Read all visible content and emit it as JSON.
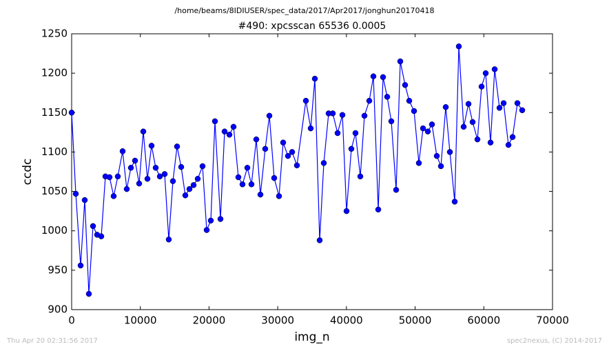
{
  "chart_data": {
    "type": "line",
    "suptitle": "/home/beams/8IDIUSER/spec_data/2017/Apr2017/jonghun20170418",
    "title": "#490: xpcsscan 65536 0.0005",
    "x_label": "img_n",
    "y_label": "ccdc",
    "footer_left": "Thu Apr 20 02:31:56 2017",
    "footer_right": "spec2nexus, (C) 2014-2017",
    "color": "#0000ff",
    "xlim": [
      0,
      70000
    ],
    "xticks": [
      0,
      10000,
      20000,
      30000,
      40000,
      50000,
      60000,
      70000
    ],
    "ylim": [
      900,
      1250
    ],
    "yticks": [
      900,
      950,
      1000,
      1050,
      1100,
      1150,
      1200,
      1250
    ],
    "x": [
      0,
      602,
      1304,
      1905,
      2507,
      3109,
      3710,
      4312,
      4914,
      5516,
      6117,
      6719,
      7421,
      8023,
      8625,
      9226,
      9828,
      10430,
      11032,
      11633,
      12235,
      12837,
      13539,
      14140,
      14742,
      15344,
      15946,
      16547,
      17149,
      17751,
      18353,
      19055,
      19657,
      20258,
      20860,
      21662,
      22264,
      22966,
      23568,
      24270,
      24872,
      25574,
      26176,
      26878,
      27479,
      28181,
      28783,
      29485,
      30187,
      30789,
      31491,
      32093,
      32795,
      34099,
      34801,
      35403,
      36105,
      36707,
      37409,
      38011,
      38713,
      39415,
      40016,
      40718,
      41320,
      42022,
      42624,
      43326,
      43928,
      44630,
      45332,
      45934,
      46535,
      47237,
      47839,
      48541,
      49143,
      49845,
      50547,
      51149,
      51851,
      52453,
      53155,
      53756,
      54458,
      55060,
      55762,
      56364,
      57066,
      57768,
      58370,
      59072,
      59673,
      60275,
      60977,
      61579,
      62281,
      62883,
      63585,
      64187,
      64889,
      65591
    ],
    "values": [
      1150,
      1047,
      956,
      1039,
      920,
      1006,
      995,
      993,
      1069,
      1068,
      1044,
      1069,
      1101,
      1053,
      1080,
      1089,
      1060,
      1126,
      1066,
      1108,
      1080,
      1069,
      1072,
      989,
      1063,
      1107,
      1081,
      1045,
      1053,
      1058,
      1066,
      1082,
      1001,
      1013,
      1139,
      1015,
      1126,
      1122,
      1132,
      1068,
      1059,
      1080,
      1059,
      1116,
      1046,
      1104,
      1146,
      1067,
      1044,
      1112,
      1095,
      1100,
      1083,
      1165,
      1130,
      1193,
      988,
      1086,
      1149,
      1149,
      1124,
      1147,
      1025,
      1104,
      1124,
      1069,
      1146,
      1165,
      1196,
      1027,
      1195,
      1170,
      1139,
      1052,
      1215,
      1185,
      1165,
      1152,
      1086,
      1130,
      1126,
      1135,
      1095,
      1082,
      1157,
      1100,
      1037,
      1234,
      1132,
      1161,
      1138,
      1116,
      1183,
      1200,
      1112,
      1205,
      1156,
      1162,
      1109,
      1119,
      1162,
      1153
    ]
  }
}
